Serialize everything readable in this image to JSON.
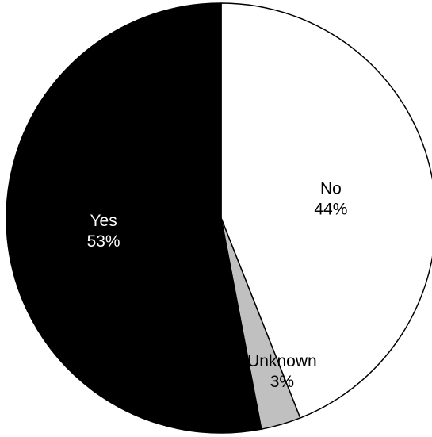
{
  "chart_data": {
    "type": "pie",
    "title": "",
    "slices": [
      {
        "label": "No",
        "value": 44,
        "value_label": "44%",
        "color": "#ffffff",
        "text_color": "#000000"
      },
      {
        "label": "Unknown",
        "value": 3,
        "value_label": "3%",
        "color": "#c0c0c0",
        "text_color": "#000000"
      },
      {
        "label": "Yes",
        "value": 53,
        "value_label": "53%",
        "color": "#000000",
        "text_color": "#ffffff"
      }
    ],
    "start": "12 o'clock",
    "direction": "clockwise",
    "legend": "none",
    "labels": "inside slices"
  }
}
